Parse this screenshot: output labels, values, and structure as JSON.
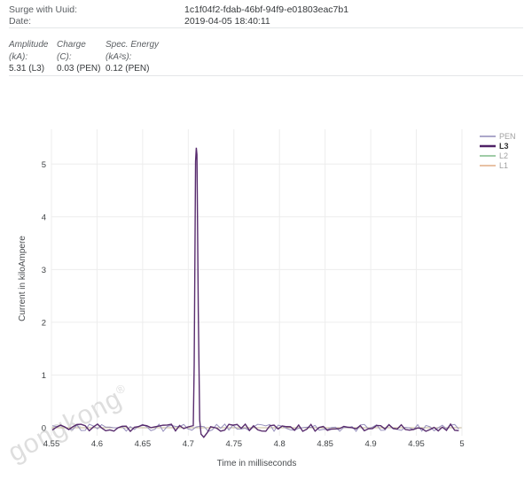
{
  "header": {
    "uuid_label": "Surge with Uuid:",
    "uuid_value": "1c1f04f2-fdab-46bf-94f9-e01803eac7b1",
    "date_label": "Date:",
    "date_value": "2019-04-05 18:40:11"
  },
  "metrics": [
    {
      "label": "Amplitude (kA):",
      "value": "5.31 (L3)"
    },
    {
      "label": "Charge (C):",
      "value": "0.03 (PEN)"
    },
    {
      "label": "Spec. Energy (kA²s):",
      "value": "0.12 (PEN)"
    }
  ],
  "watermark": {
    "text": "gongkong",
    "registered_mark": "®"
  },
  "chart_data": {
    "type": "line",
    "title": "",
    "xlabel": "Time in milliseconds",
    "ylabel": "Current in kiloAmpere",
    "xlim": [
      4.55,
      5.0
    ],
    "ylim": [
      -0.15,
      5.6
    ],
    "grid": true,
    "legend_position": "right",
    "x_tick_values": [
      4.55,
      4.6,
      4.65,
      4.7,
      4.75,
      4.8,
      4.85,
      4.9,
      4.95,
      5
    ],
    "x_tick_labels": [
      "4.55",
      "4.6",
      "4.65",
      "4.7",
      "4.75",
      "4.8",
      "4.85",
      "4.9",
      "4.95",
      "5"
    ],
    "y_tick_values": [
      0,
      1,
      2,
      3,
      4,
      5
    ],
    "y_tick_labels": [
      "0",
      "1",
      "2",
      "3",
      "4",
      "5"
    ],
    "colors": {
      "grid": "#ededed",
      "zero_line": "#d3d3d3",
      "tick_text": "#3f4245",
      "axis_title_text": "#4a4d50"
    },
    "series": [
      {
        "name": "PEN",
        "color": "#9089b8",
        "role": "noise",
        "muted": true,
        "highlight": false
      },
      {
        "name": "L3",
        "color": "#4f2166",
        "role": "spike",
        "muted": false,
        "highlight": true
      },
      {
        "name": "L2",
        "color": "#80bb8a",
        "role": "flat",
        "muted": true,
        "highlight": false
      },
      {
        "name": "L1",
        "color": "#e0ac85",
        "role": "flat",
        "muted": true,
        "highlight": false
      }
    ],
    "key_points": {
      "spike_series": "L3",
      "spike_time_ms": 4.709,
      "spike_peak_kA": 5.31,
      "baseline_mean_kA": 0
    },
    "spike_points": [
      [
        4.7055,
        0.04
      ],
      [
        4.7065,
        1.2
      ],
      [
        4.708,
        5.05
      ],
      [
        4.7088,
        5.31
      ],
      [
        4.7095,
        5.18
      ],
      [
        4.711,
        2.2
      ],
      [
        4.7125,
        0.15
      ],
      [
        4.714,
        -0.12
      ],
      [
        4.717,
        -0.18
      ],
      [
        4.721,
        -0.09
      ],
      [
        4.7245,
        0.02
      ]
    ],
    "baseline": {
      "mean_kA": 0,
      "noise_amplitude_kA": 0.07,
      "sample_step_ms": 0.0045,
      "seed": 11
    }
  }
}
